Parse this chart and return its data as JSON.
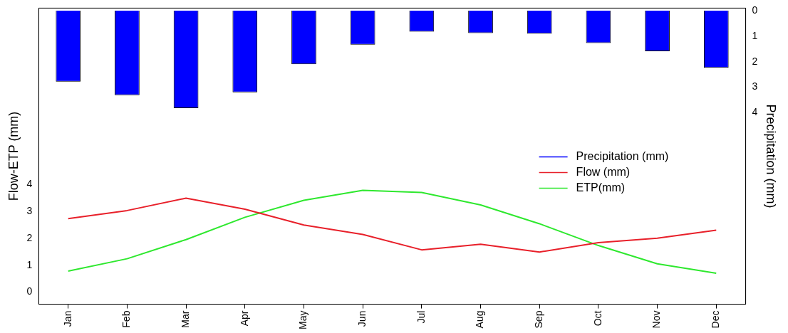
{
  "chart_data": {
    "type": "line",
    "categories": [
      "Jan",
      "Feb",
      "Mar",
      "Apr",
      "May",
      "Jun",
      "Jul",
      "Aug",
      "Sep",
      "Oct",
      "Nov",
      "Dec"
    ],
    "ylabel": "Flow-ETP (mm)",
    "y2label": "Precipitation (mm)",
    "ylim": [
      -0.45,
      10.55
    ],
    "yticks": [
      0,
      1,
      2,
      3,
      4
    ],
    "y2lim": [
      11.5,
      -0.1
    ],
    "y2ticks": [
      0,
      1,
      2,
      3,
      4
    ],
    "legend": "right",
    "grid": false,
    "series": [
      {
        "name": "Precipitation (mm)",
        "type": "bar",
        "axis": "y2",
        "color": "#0000ff",
        "values": [
          2.78,
          3.31,
          3.82,
          3.2,
          2.1,
          1.33,
          0.82,
          0.88,
          0.9,
          1.27,
          1.59,
          2.24
        ]
      },
      {
        "name": "Flow (mm)",
        "color": "#e8202a",
        "values": [
          2.73,
          3.03,
          3.49,
          3.08,
          2.49,
          2.14,
          1.57,
          1.78,
          1.49,
          1.84,
          2.0,
          2.3
        ]
      },
      {
        "name": "ETP(mm)",
        "color": "#2ee82e",
        "values": [
          0.78,
          1.24,
          1.95,
          2.78,
          3.41,
          3.78,
          3.7,
          3.24,
          2.54,
          1.73,
          1.05,
          0.7
        ]
      }
    ]
  }
}
